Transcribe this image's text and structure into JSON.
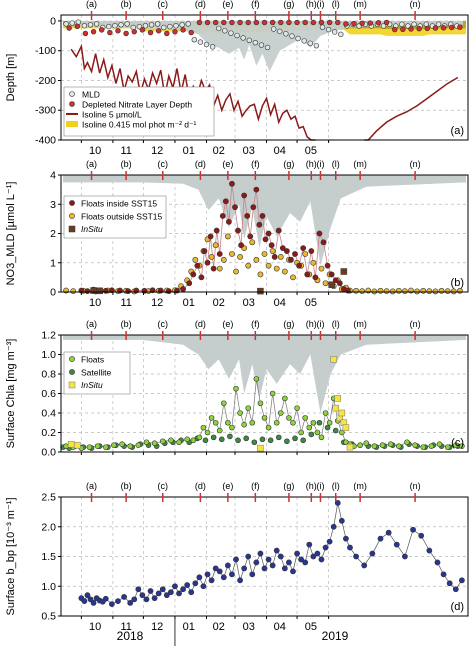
{
  "event_labels": [
    "(a)",
    "(b)",
    "(c)",
    "(d)",
    "(e)",
    "(f)",
    "(g)",
    "(h)",
    "(i)",
    "(l)",
    "(m)",
    "(n)"
  ],
  "event_days": [
    10,
    44,
    80,
    117,
    144,
    171,
    204,
    226,
    235,
    250,
    274,
    328
  ],
  "months": [
    "10",
    "11",
    "12",
    "01",
    "02",
    "03",
    "04",
    "05"
  ],
  "years": [
    "2018",
    "2019"
  ],
  "colors": {
    "maroon": "#8b1a1a",
    "red": "#d32f2f",
    "gray_fill": "#c6cdcd",
    "yellow": "#f2d11c",
    "olive": "#b5a12a",
    "gold": "#e9b830",
    "green_light": "#8fd33c",
    "green_dark": "#3e8a3e",
    "navy": "#283593"
  },
  "chart_data": [
    {
      "type": "line",
      "panel_tag": "(a)",
      "ylabel": "Depth [m]",
      "ylim": [
        -400,
        20
      ],
      "yticks": [
        0,
        -100,
        -200,
        -300,
        -400
      ],
      "xlim": [
        -20,
        380
      ],
      "legend": [
        "MLD",
        "Depleted Nitrate Layer Depth",
        "Isoline 5 µmol/L",
        "Isoline 0.415 mol phot m⁻² d⁻¹"
      ],
      "legend_placement": "bottom-left",
      "series": [
        {
          "name": "Isoline 5 µmol/L",
          "x": [
            -10,
            -5,
            0,
            3,
            6,
            10,
            14,
            18,
            22,
            26,
            30,
            34,
            38,
            42,
            46,
            50,
            54,
            58,
            62,
            66,
            70,
            74,
            78,
            82,
            86,
            90,
            94,
            98,
            102,
            106,
            110,
            114,
            118,
            122,
            126,
            130,
            134,
            138,
            142,
            146,
            150,
            154,
            158,
            162,
            166,
            170,
            174,
            178,
            182,
            186,
            190,
            194,
            198,
            202,
            206,
            210,
            214,
            218,
            222,
            226,
            230
          ],
          "y": [
            -95,
            -120,
            -85,
            -160,
            -140,
            -170,
            -110,
            -175,
            -130,
            -190,
            -150,
            -210,
            -160,
            -235,
            -185,
            -205,
            -170,
            -245,
            -195,
            -230,
            -175,
            -210,
            -165,
            -250,
            -185,
            -225,
            -160,
            -240,
            -180,
            -260,
            -220,
            -250,
            -200,
            -235,
            -215,
            -285,
            -250,
            -300,
            -265,
            -245,
            -300,
            -270,
            -320,
            -300,
            -285,
            -280,
            -330,
            -285,
            -260,
            -315,
            -280,
            -340,
            -310,
            -300,
            -330,
            -320,
            -360,
            -355,
            -390,
            -410,
            -430
          ]
        },
        {
          "name": "Isoline 5 µmol/L",
          "x": [
            278,
            282,
            290,
            300,
            310,
            320,
            330,
            340,
            350,
            360,
            370
          ],
          "y": [
            -410,
            -400,
            -370,
            -340,
            -320,
            -305,
            -285,
            -260,
            -235,
            -210,
            -190
          ]
        }
      ]
    },
    {
      "type": "scatter",
      "panel_tag": "(b)",
      "ylabel": "NO3_MLD [µmol L⁻¹]",
      "ylim": [
        0,
        4
      ],
      "yticks": [
        0,
        1,
        2,
        3,
        4
      ],
      "xlim": [
        -20,
        380
      ],
      "legend": [
        "Floats inside SST15",
        "Floats outside SST15",
        "InSitu"
      ],
      "legend_placement": "top-left",
      "series": [
        {
          "name": "Floats inside SST15",
          "x": [
            0,
            6,
            12,
            18,
            24,
            30,
            38,
            46,
            54,
            62,
            70,
            78,
            86,
            94,
            100,
            106,
            110,
            114,
            118,
            121,
            124,
            127,
            130,
            133,
            136,
            139,
            142,
            145,
            148,
            151,
            154,
            157,
            160,
            163,
            166,
            169,
            172,
            175,
            178,
            181,
            184,
            187,
            190,
            194,
            198,
            202,
            206,
            210,
            214,
            218,
            222,
            226,
            230,
            234,
            238,
            242,
            246,
            250,
            254,
            258,
            262
          ],
          "y": [
            0.05,
            0.03,
            0.08,
            0.05,
            0.04,
            0.06,
            0.05,
            0.03,
            0.05,
            0.04,
            0.06,
            0.05,
            0.03,
            0.05,
            0.1,
            0.3,
            0.6,
            0.9,
            0.5,
            1.4,
            1.0,
            1.9,
            0.8,
            2.1,
            1.3,
            2.6,
            3.1,
            2.4,
            3.7,
            2.9,
            2.1,
            1.6,
            3.3,
            2.6,
            1.9,
            2.9,
            3.5,
            2.3,
            2.6,
            1.8,
            2.0,
            1.6,
            1.2,
            2.1,
            1.5,
            1.4,
            1.1,
            1.3,
            0.9,
            1.5,
            0.6,
            1.4,
            0.5,
            2.0,
            1.7,
            0.9,
            0.6,
            0.4,
            0.3,
            0.1,
            0.05
          ]
        },
        {
          "name": "Floats outside SST15",
          "x": [
            -15,
            -8,
            2,
            14,
            26,
            36,
            44,
            52,
            66,
            76,
            84,
            92,
            98,
            104,
            108,
            112,
            116,
            120,
            124,
            128,
            132,
            136,
            140,
            144,
            148,
            152,
            156,
            160,
            164,
            168,
            172,
            176,
            180,
            184,
            188,
            192,
            196,
            200,
            204,
            208,
            212,
            216,
            220,
            224,
            228,
            232,
            236,
            240,
            244,
            248,
            252,
            256,
            260,
            264,
            270,
            276,
            282,
            288,
            294,
            300,
            306,
            312,
            318,
            324,
            330,
            336,
            342,
            348,
            354,
            360,
            366,
            372
          ],
          "y": [
            0.05,
            0.03,
            0.04,
            0.02,
            0.05,
            0.03,
            0.04,
            0.02,
            0.03,
            0.04,
            0.05,
            0.06,
            0.2,
            0.4,
            0.7,
            1.1,
            0.9,
            1.4,
            1.8,
            1.2,
            1.6,
            0.8,
            1.1,
            1.9,
            1.3,
            0.7,
            1.2,
            1.5,
            0.9,
            1.7,
            1.1,
            0.6,
            1.3,
            0.9,
            1.4,
            0.8,
            1.2,
            0.7,
            1.1,
            0.5,
            1.0,
            0.9,
            1.3,
            0.6,
            1.0,
            0.4,
            0.8,
            0.3,
            0.6,
            0.2,
            0.4,
            0.1,
            0.15,
            0.05,
            0.04,
            0.03,
            0.05,
            0.02,
            0.04,
            0.03,
            0.02,
            0.04,
            0.03,
            0.05,
            0.02,
            0.04,
            0.03,
            0.02,
            0.04,
            0.03,
            0.02,
            0.04
          ]
        },
        {
          "name": "InSitu",
          "x": [
            12,
            18,
            176,
            246,
            258
          ],
          "y": [
            0.05,
            0.04,
            0.03,
            0.25,
            0.7
          ]
        }
      ]
    },
    {
      "type": "scatter",
      "panel_tag": "(c)",
      "ylabel": "Surface Chla [mg m⁻³]",
      "ylim": [
        0,
        1.2
      ],
      "yticks": [
        0.0,
        0.2,
        0.4,
        0.6,
        0.8,
        1.0,
        1.2
      ],
      "xlim": [
        -20,
        380
      ],
      "legend": [
        "Floats",
        "Satellite",
        "InSitu"
      ],
      "legend_placement": "top-left",
      "series": [
        {
          "name": "Floats",
          "x": [
            -15,
            -8,
            0,
            8,
            16,
            24,
            32,
            40,
            48,
            56,
            64,
            72,
            80,
            88,
            96,
            104,
            110,
            116,
            120,
            124,
            128,
            132,
            136,
            140,
            144,
            148,
            152,
            156,
            160,
            164,
            168,
            172,
            176,
            180,
            184,
            188,
            192,
            196,
            200,
            204,
            208,
            212,
            216,
            220,
            224,
            228,
            232,
            236,
            240,
            244,
            248,
            252,
            256,
            260,
            264,
            268,
            274,
            280,
            288,
            296,
            304,
            312,
            320,
            328,
            336,
            344,
            352,
            360,
            368,
            374
          ],
          "y": [
            0.06,
            0.05,
            0.04,
            0.05,
            0.06,
            0.05,
            0.07,
            0.08,
            0.06,
            0.07,
            0.1,
            0.09,
            0.11,
            0.12,
            0.1,
            0.13,
            0.12,
            0.15,
            0.25,
            0.2,
            0.35,
            0.3,
            0.22,
            0.5,
            0.3,
            0.25,
            0.65,
            0.4,
            0.28,
            0.45,
            0.3,
            0.75,
            0.5,
            0.35,
            0.25,
            0.6,
            0.3,
            0.4,
            0.55,
            0.35,
            0.3,
            0.45,
            0.2,
            0.35,
            0.25,
            0.3,
            0.2,
            0.15,
            0.4,
            0.3,
            0.55,
            0.32,
            0.2,
            0.1,
            0.08,
            0.06,
            0.07,
            0.09,
            0.06,
            0.07,
            0.08,
            0.06,
            0.1,
            0.07,
            0.05,
            0.06,
            0.08,
            0.05,
            0.07,
            0.06
          ]
        },
        {
          "name": "Satellite",
          "x": [
            -18,
            -12,
            -6,
            2,
            10,
            18,
            26,
            34,
            42,
            50,
            58,
            66,
            74,
            82,
            90,
            98,
            106,
            114,
            122,
            130,
            138,
            146,
            154,
            162,
            170,
            178,
            186,
            194,
            202,
            210,
            218,
            226,
            234,
            242,
            250,
            258,
            266,
            274,
            282,
            290,
            298,
            306,
            314,
            322,
            330,
            338,
            346,
            354,
            362,
            370
          ],
          "y": [
            0.05,
            0.04,
            0.06,
            0.05,
            0.04,
            0.06,
            0.05,
            0.07,
            0.06,
            0.05,
            0.08,
            0.07,
            0.06,
            0.09,
            0.1,
            0.12,
            0.1,
            0.14,
            0.12,
            0.15,
            0.13,
            0.16,
            0.12,
            0.14,
            0.1,
            0.13,
            0.12,
            0.15,
            0.11,
            0.14,
            0.12,
            0.18,
            0.3,
            0.25,
            0.22,
            0.1,
            0.08,
            0.07,
            0.06,
            0.05,
            0.06,
            0.07,
            0.05,
            0.08,
            0.06,
            0.05,
            0.07,
            0.06,
            0.05,
            0.06
          ]
        },
        {
          "name": "InSitu",
          "x": [
            -10,
            -4,
            176,
            248,
            250,
            252,
            254,
            256,
            258,
            260,
            264
          ],
          "y": [
            0.08,
            0.07,
            0.04,
            0.95,
            0.45,
            0.55,
            0.35,
            0.4,
            0.3,
            0.25,
            0.05
          ]
        }
      ]
    },
    {
      "type": "line",
      "panel_tag": "(d)",
      "ylabel": "Surface b_bp [10⁻³ m⁻¹]",
      "ylim": [
        0.5,
        2.5
      ],
      "yticks": [
        0.5,
        1.0,
        1.5,
        2.0,
        2.5
      ],
      "xlim": [
        -20,
        380
      ],
      "series": [
        {
          "name": "Floats",
          "x": [
            0,
            3,
            6,
            9,
            12,
            15,
            18,
            21,
            24,
            30,
            36,
            42,
            48,
            52,
            56,
            60,
            64,
            68,
            72,
            76,
            80,
            84,
            88,
            92,
            96,
            100,
            104,
            108,
            112,
            116,
            120,
            124,
            128,
            132,
            136,
            140,
            144,
            148,
            152,
            156,
            160,
            164,
            168,
            172,
            176,
            180,
            184,
            188,
            192,
            196,
            200,
            204,
            208,
            212,
            216,
            220,
            224,
            228,
            232,
            236,
            240,
            244,
            248,
            252,
            256,
            260,
            264,
            270,
            278,
            286,
            294,
            302,
            310,
            318,
            326,
            334,
            342,
            350,
            356,
            362,
            368,
            374
          ],
          "y": [
            0.8,
            0.75,
            0.85,
            0.78,
            0.72,
            0.8,
            0.76,
            0.74,
            0.79,
            0.7,
            0.75,
            0.82,
            0.72,
            0.78,
            0.95,
            0.85,
            0.78,
            0.92,
            0.8,
            0.88,
            0.95,
            0.85,
            0.9,
            1.0,
            0.88,
            0.95,
            1.02,
            0.9,
            1.05,
            1.15,
            1.0,
            1.2,
            1.1,
            1.3,
            1.25,
            1.15,
            1.35,
            1.2,
            1.45,
            1.1,
            1.3,
            1.5,
            1.2,
            1.4,
            1.55,
            1.3,
            1.45,
            1.35,
            1.6,
            1.5,
            1.3,
            1.4,
            1.25,
            1.55,
            1.45,
            1.4,
            1.7,
            1.5,
            1.55,
            1.45,
            1.65,
            1.75,
            2.0,
            2.4,
            2.1,
            1.8,
            1.65,
            1.5,
            1.35,
            1.55,
            1.8,
            1.9,
            1.7,
            1.5,
            1.95,
            1.85,
            1.6,
            1.4,
            1.2,
            1.05,
            0.95,
            1.1
          ]
        }
      ]
    }
  ]
}
